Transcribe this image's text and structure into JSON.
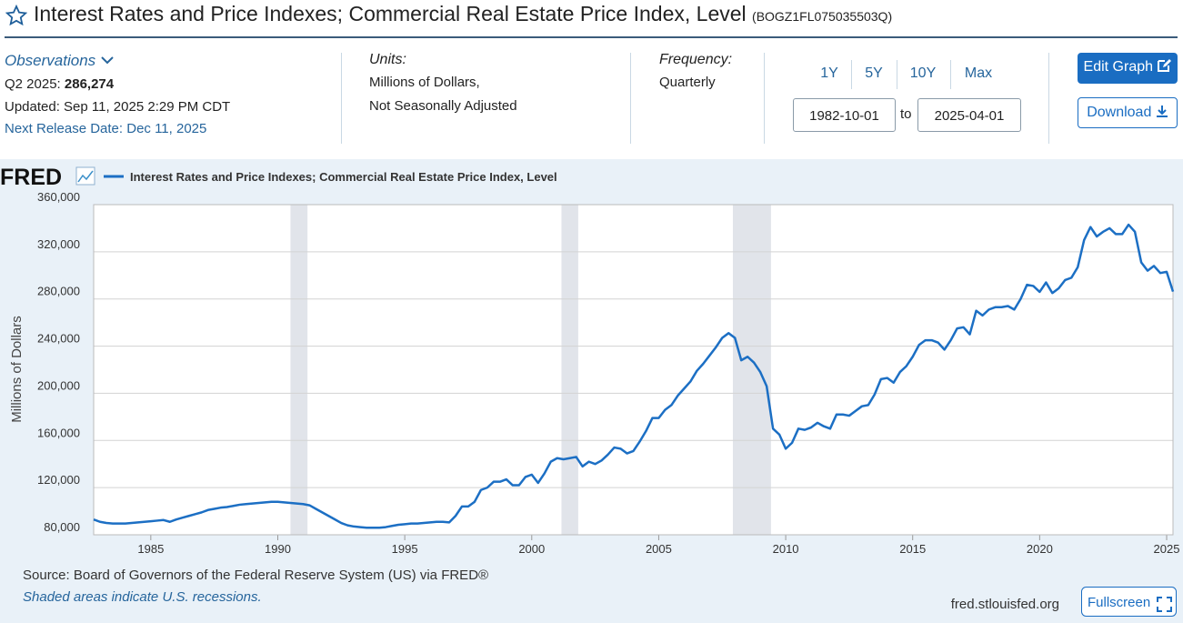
{
  "header": {
    "title": "Interest Rates and Price Indexes; Commercial Real Estate Price Index, Level",
    "series_id": "(BOGZ1FL075035503Q)"
  },
  "info": {
    "observations": "Observations",
    "obs_date": "Q2 2025:",
    "obs_value": "286,274",
    "updated": "Updated: Sep 11, 2025 2:29 PM CDT",
    "next_release": "Next Release Date: Dec 11, 2025",
    "units_label": "Units:",
    "units": [
      "Millions of Dollars,",
      "Not Seasonally Adjusted"
    ],
    "frequency_label": "Frequency:",
    "frequency": "Quarterly",
    "ranges": [
      "1Y",
      "5Y",
      "10Y",
      "Max"
    ],
    "start_date": "1982-10-01",
    "to": "to",
    "end_date": "2025-04-01",
    "edit_graph": "Edit Graph",
    "download": "Download"
  },
  "footer": {
    "logo": "FRED",
    "source": "Source: Board of Governors of the Federal Reserve System (US) via FRED®",
    "note": "Shaded areas indicate U.S. recessions.",
    "site": "fred.stlouisfed.org",
    "fullscreen": "Fullscreen"
  },
  "chart_data": {
    "type": "line",
    "y_label": "Millions of Dollars",
    "x": [
      1982.75,
      1983,
      1983.25,
      1983.5,
      1983.75,
      1984,
      1984.25,
      1984.5,
      1984.75,
      1985,
      1985.25,
      1985.5,
      1985.75,
      1986,
      1986.25,
      1986.5,
      1986.75,
      1987,
      1987.25,
      1987.5,
      1987.75,
      1988,
      1988.25,
      1988.5,
      1988.75,
      1989,
      1989.25,
      1989.5,
      1989.75,
      1990,
      1990.25,
      1990.5,
      1990.75,
      1991,
      1991.25,
      1991.5,
      1991.75,
      1992,
      1992.25,
      1992.5,
      1992.75,
      1993,
      1993.25,
      1993.5,
      1993.75,
      1994,
      1994.25,
      1994.5,
      1994.75,
      1995,
      1995.25,
      1995.5,
      1995.75,
      1996,
      1996.25,
      1996.5,
      1996.75,
      1997,
      1997.25,
      1997.5,
      1997.75,
      1998,
      1998.25,
      1998.5,
      1998.75,
      1999,
      1999.25,
      1999.5,
      1999.75,
      2000,
      2000.25,
      2000.5,
      2000.75,
      2001,
      2001.25,
      2001.5,
      2001.75,
      2002,
      2002.25,
      2002.5,
      2002.75,
      2003,
      2003.25,
      2003.5,
      2003.75,
      2004,
      2004.25,
      2004.5,
      2004.75,
      2005,
      2005.25,
      2005.5,
      2005.75,
      2006,
      2006.25,
      2006.5,
      2006.75,
      2007,
      2007.25,
      2007.5,
      2007.75,
      2008,
      2008.25,
      2008.5,
      2008.75,
      2009,
      2009.25,
      2009.5,
      2009.75,
      2010,
      2010.25,
      2010.5,
      2010.75,
      2011,
      2011.25,
      2011.5,
      2011.75,
      2012,
      2012.25,
      2012.5,
      2012.75,
      2013,
      2013.25,
      2013.5,
      2013.75,
      2014,
      2014.25,
      2014.5,
      2014.75,
      2015,
      2015.25,
      2015.5,
      2015.75,
      2016,
      2016.25,
      2016.5,
      2016.75,
      2017,
      2017.25,
      2017.5,
      2017.75,
      2018,
      2018.25,
      2018.5,
      2018.75,
      2019,
      2019.25,
      2019.5,
      2019.75,
      2020,
      2020.25,
      2020.5,
      2020.75,
      2021,
      2021.25,
      2021.5,
      2021.75,
      2022,
      2022.25,
      2022.5,
      2022.75,
      2023,
      2023.25,
      2023.5,
      2023.75,
      2024,
      2024.25,
      2024.5,
      2024.75,
      2025,
      2025.25
    ],
    "series": [
      {
        "name": "Interest Rates and Price Indexes; Commercial Real Estate Price Index, Level",
        "color": "#1c6fc4",
        "values": [
          93000,
          91000,
          90000,
          89500,
          89500,
          89500,
          90000,
          90500,
          91000,
          91500,
          92000,
          92500,
          91000,
          93000,
          94500,
          96000,
          97500,
          99000,
          101000,
          102000,
          103000,
          103500,
          104500,
          105500,
          106000,
          106500,
          107000,
          107500,
          108000,
          108000,
          107500,
          107000,
          106500,
          106000,
          105000,
          102000,
          99000,
          96000,
          93000,
          90000,
          88000,
          87000,
          86500,
          86000,
          86000,
          86000,
          86500,
          87500,
          88500,
          89000,
          89500,
          89500,
          90000,
          90500,
          91000,
          91000,
          90500,
          96000,
          104000,
          104000,
          108000,
          118000,
          120000,
          125000,
          125000,
          127000,
          122000,
          122000,
          129000,
          131000,
          124000,
          132000,
          142000,
          145000,
          144000,
          145000,
          146000,
          138000,
          142000,
          140000,
          143000,
          148000,
          154000,
          153000,
          149000,
          151000,
          159000,
          168000,
          179000,
          179000,
          186000,
          190000,
          198000,
          204000,
          210000,
          219000,
          225000,
          232000,
          239000,
          247000,
          251000,
          247000,
          228000,
          231000,
          226000,
          218000,
          206000,
          170000,
          165000,
          153000,
          158000,
          170000,
          169000,
          171000,
          175000,
          172000,
          170000,
          182000,
          182000,
          181000,
          185000,
          189000,
          190000,
          199000,
          212000,
          213000,
          209000,
          218000,
          223000,
          231000,
          241000,
          245000,
          245000,
          243000,
          237000,
          245000,
          255000,
          256000,
          250000,
          270000,
          266000,
          271000,
          273000,
          273000,
          274000,
          271000,
          280000,
          292000,
          291000,
          286000,
          294000,
          285000,
          289000,
          296000,
          298000,
          307000,
          330000,
          341000,
          333000,
          337000,
          340000,
          335000,
          335000,
          343000,
          337000,
          311000,
          304000,
          308000,
          302000,
          303000,
          286274
        ]
      }
    ],
    "recessions": [
      [
        1990.5,
        1991.17
      ],
      [
        2001.17,
        2001.83
      ],
      [
        2007.92,
        2009.42
      ]
    ],
    "recession_color": "#e1e4ea",
    "xlim": [
      1982.75,
      2025.25
    ],
    "xticks": [
      1985,
      1990,
      1995,
      2000,
      2005,
      2010,
      2015,
      2020,
      2025
    ],
    "ylim": [
      80000,
      360000
    ],
    "yticks": [
      {
        "value": 80000,
        "label": "80,000"
      },
      {
        "value": 120000,
        "label": "120,000"
      },
      {
        "value": 160000,
        "label": "160,000"
      },
      {
        "value": 200000,
        "label": "200,000"
      },
      {
        "value": 240000,
        "label": "240,000"
      },
      {
        "value": 280000,
        "label": "280,000"
      },
      {
        "value": 320000,
        "label": "320,000"
      },
      {
        "value": 360000,
        "label": "360,000"
      }
    ],
    "grid": true
  }
}
